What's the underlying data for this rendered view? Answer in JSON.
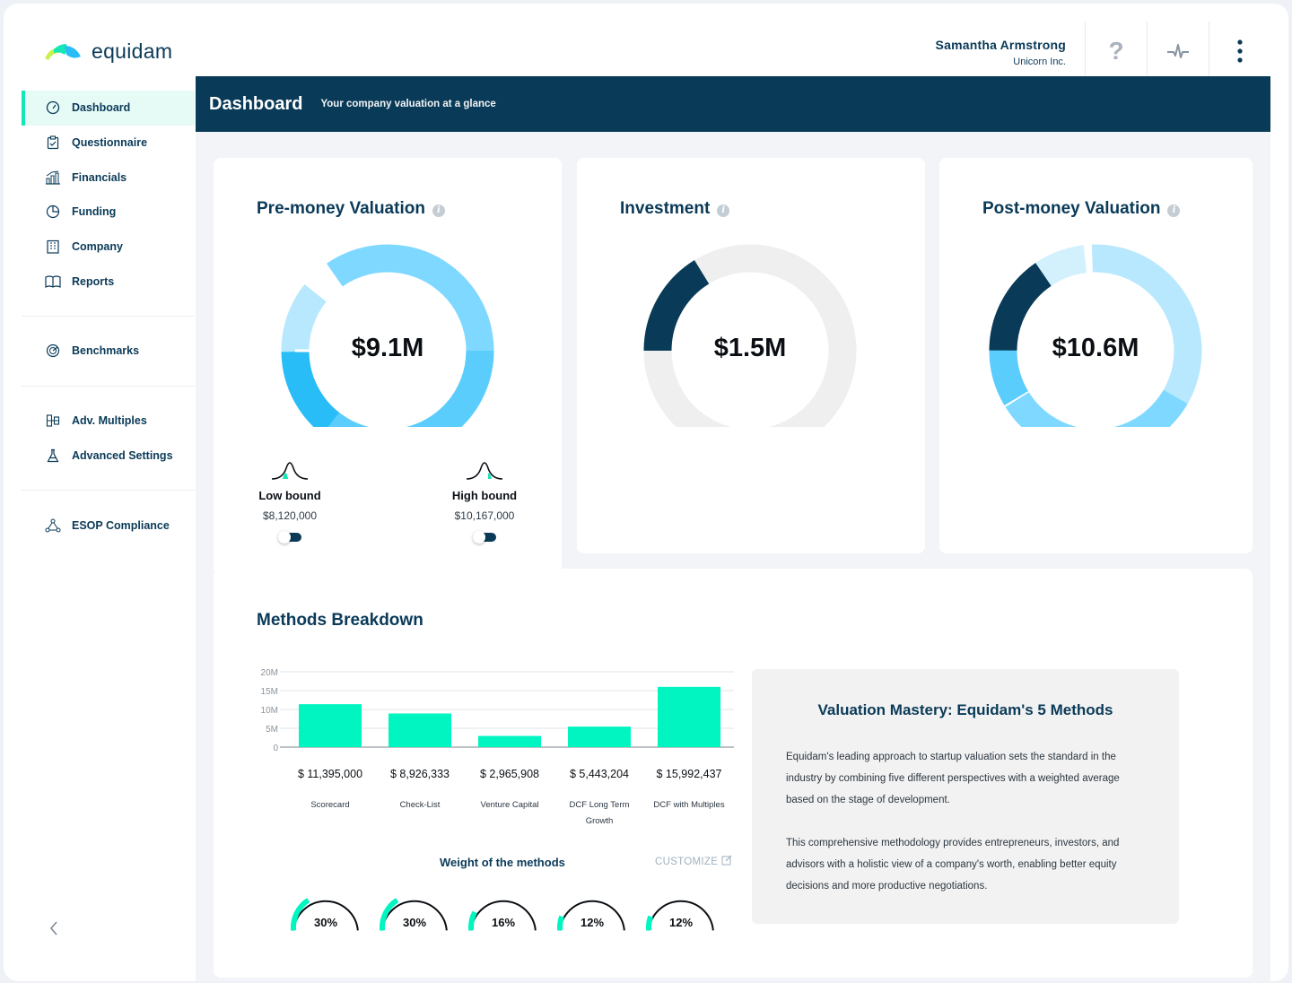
{
  "app": {
    "logo_text": "equidam"
  },
  "user": {
    "name": "Samantha Armstrong",
    "company": "Unicorn Inc."
  },
  "top_icons": [
    "help-icon",
    "activity-icon",
    "more-vertical-icon"
  ],
  "sidebar": {
    "groups": [
      [
        {
          "label": "Dashboard",
          "icon": "dashboard-icon",
          "active": true
        },
        {
          "label": "Questionnaire",
          "icon": "clipboard-icon"
        },
        {
          "label": "Financials",
          "icon": "bar-chart-icon"
        },
        {
          "label": "Funding",
          "icon": "pie-chart-icon"
        },
        {
          "label": "Company",
          "icon": "building-icon"
        },
        {
          "label": "Reports",
          "icon": "book-icon"
        }
      ],
      [
        {
          "label": "Benchmarks",
          "icon": "radar-icon"
        }
      ],
      [
        {
          "label": "Adv. Multiples",
          "icon": "multiples-icon"
        },
        {
          "label": "Advanced Settings",
          "icon": "flask-icon"
        }
      ],
      [
        {
          "label": "ESOP Compliance",
          "icon": "network-icon"
        }
      ]
    ],
    "collapse_icon": "chevron-left-icon"
  },
  "header": {
    "title": "Dashboard",
    "subtitle": "Your company valuation at a glance"
  },
  "cards": {
    "pre_money": {
      "title": "Pre-money Valuation",
      "value": "$9.1M",
      "low_bound": {
        "label": "Low bound",
        "value": "$8,120,000"
      },
      "high_bound": {
        "label": "High bound",
        "value": "$10,167,000"
      }
    },
    "investment": {
      "title": "Investment",
      "value": "$1.5M"
    },
    "post_money": {
      "title": "Post-money Valuation",
      "value": "$10.6M"
    }
  },
  "colors": {
    "navy": "#093a57",
    "mint": "#00f5c0",
    "sky_light": "#7fd8ff",
    "sky_pale": "#b7e8fd",
    "sky": "#5acdfd",
    "sky_deep": "#29bdf7",
    "grey_ring": "#efefef"
  },
  "methods": {
    "title": "Methods Breakdown",
    "weights_title": "Weight of the methods",
    "customize_label": "CUSTOMIZE",
    "mastery": {
      "title": "Valuation Mastery: Equidam's 5 Methods",
      "p1": "Equidam's leading approach to startup valuation sets the standard in the industry by combining five different perspectives with a weighted average based on the stage of development.",
      "p2": "This comprehensive methodology provides entrepreneurs, investors, and advisors with a holistic view of a company's worth, enabling better equity decisions and more productive negotiations."
    }
  },
  "chart_data": {
    "type": "bar",
    "categories": [
      "Scorecard",
      "Check-List",
      "Venture Capital",
      "DCF Long Term Growth",
      "DCF with Multiples"
    ],
    "values": [
      11395000,
      8926333,
      2965908,
      5443204,
      15992437
    ],
    "value_labels": [
      "$ 11,395,000",
      "$ 8,926,333",
      "$ 2,965,908",
      "$ 5,443,204",
      "$ 15,992,437"
    ],
    "y_ticks": [
      "0",
      "5M",
      "10M",
      "15M",
      "20M"
    ],
    "ylim": [
      0,
      20000000
    ],
    "weights": [
      30,
      30,
      16,
      12,
      12
    ],
    "weight_labels": [
      "30%",
      "30%",
      "16%",
      "12%",
      "12%"
    ],
    "grid": true
  }
}
